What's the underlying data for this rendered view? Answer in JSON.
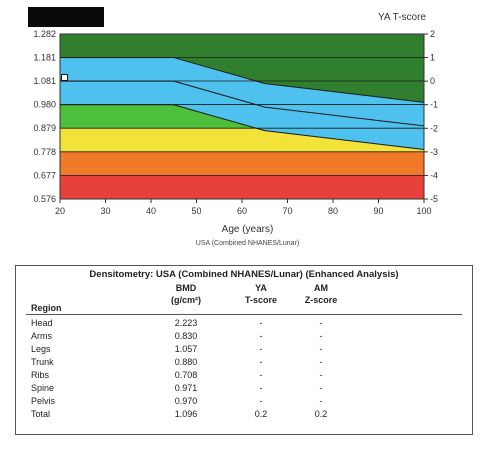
{
  "header": {
    "right_axis_title": "YA T-score"
  },
  "chart_data": {
    "type": "area",
    "x_axis": {
      "label": "Age (years)",
      "range": [
        20,
        100
      ],
      "ticks": [
        20,
        30,
        40,
        50,
        60,
        70,
        80,
        90,
        100
      ]
    },
    "y_axis": {
      "range": [
        0.576,
        1.282
      ],
      "ticks": [
        "1.282",
        "1.181",
        "1.081",
        "0.980",
        "0.879",
        "0.778",
        "0.677",
        "0.576"
      ]
    },
    "right_axis": {
      "ticks": [
        "2",
        "1",
        "0",
        "-1",
        "-2",
        "-3",
        "-4",
        "-5"
      ]
    },
    "reference_curve_ages": [
      20,
      45,
      65,
      100
    ],
    "reference_curves_tscore": {
      "plus1": [
        1,
        1,
        -0.1,
        -0.9
      ],
      "zero": [
        0,
        0,
        -1.1,
        -1.9
      ],
      "minus1": [
        -1,
        -1,
        -2.1,
        -2.9
      ]
    },
    "bands": [
      {
        "from": -5,
        "to": -4,
        "color": "#e8413b"
      },
      {
        "from": -4,
        "to": -3,
        "color": "#f07a2a"
      },
      {
        "from": -3,
        "to": -2,
        "color": "#f2e23a"
      },
      {
        "from": -2,
        "to": -1,
        "color": "#4cbf3c"
      },
      {
        "from": -1,
        "to": 2,
        "color": "#2f7f2e"
      }
    ],
    "reference_band_color": "#4fc1ee",
    "patient_marker": {
      "age": 21,
      "bmd": 1.096
    },
    "caption": "USA (Combined NHANES/Lunar)"
  },
  "table": {
    "title": "Densitometry: USA (Combined NHANES/Lunar) (Enhanced Analysis)",
    "headers": {
      "region": "Region",
      "bmd_line1": "BMD",
      "bmd_line2": "(g/cm²)",
      "ya_line1": "YA",
      "ya_line2": "T-score",
      "am_line1": "AM",
      "am_line2": "Z-score"
    },
    "rows": [
      {
        "region": "Head",
        "bmd": "2.223",
        "ya": "-",
        "am": "-"
      },
      {
        "region": "Arms",
        "bmd": "0.830",
        "ya": "-",
        "am": "-"
      },
      {
        "region": "Legs",
        "bmd": "1.057",
        "ya": "-",
        "am": "-"
      },
      {
        "region": "Trunk",
        "bmd": "0.880",
        "ya": "-",
        "am": "-"
      },
      {
        "region": "Ribs",
        "bmd": "0.708",
        "ya": "-",
        "am": "-"
      },
      {
        "region": "Spine",
        "bmd": "0.971",
        "ya": "-",
        "am": "-"
      },
      {
        "region": "Pelvis",
        "bmd": "0.970",
        "ya": "-",
        "am": "-"
      },
      {
        "region": "Total",
        "bmd": "1.096",
        "ya": "0.2",
        "am": "0.2"
      }
    ]
  }
}
